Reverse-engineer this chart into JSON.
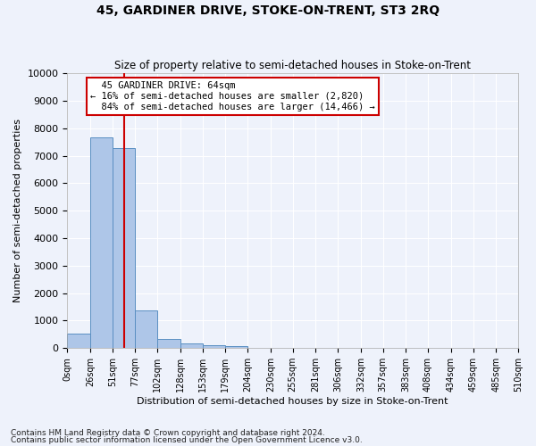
{
  "title": "45, GARDINER DRIVE, STOKE-ON-TRENT, ST3 2RQ",
  "subtitle": "Size of property relative to semi-detached houses in Stoke-on-Trent",
  "xlabel": "Distribution of semi-detached houses by size in Stoke-on-Trent",
  "ylabel": "Number of semi-detached properties",
  "footnote1": "Contains HM Land Registry data © Crown copyright and database right 2024.",
  "footnote2": "Contains public sector information licensed under the Open Government Licence v3.0.",
  "property_size": 64,
  "property_label": "45 GARDINER DRIVE: 64sqm",
  "pct_smaller": 16,
  "pct_larger": 84,
  "count_smaller": 2820,
  "count_larger": 14466,
  "bin_edges": [
    0,
    26,
    51,
    77,
    102,
    128,
    153,
    179,
    204,
    230,
    255,
    281,
    306,
    332,
    357,
    383,
    408,
    434,
    459,
    485,
    510
  ],
  "bin_heights": [
    540,
    7650,
    7280,
    1370,
    320,
    160,
    100,
    80,
    0,
    0,
    0,
    0,
    0,
    0,
    0,
    0,
    0,
    0,
    0,
    0
  ],
  "bar_color": "#aec6e8",
  "bar_edge_color": "#5a8fc2",
  "highlight_line_color": "#cc0000",
  "annotation_box_color": "#cc0000",
  "background_color": "#eef2fb",
  "grid_color": "#ffffff",
  "ylim": [
    0,
    10000
  ],
  "yticks": [
    0,
    1000,
    2000,
    3000,
    4000,
    5000,
    6000,
    7000,
    8000,
    9000,
    10000
  ]
}
